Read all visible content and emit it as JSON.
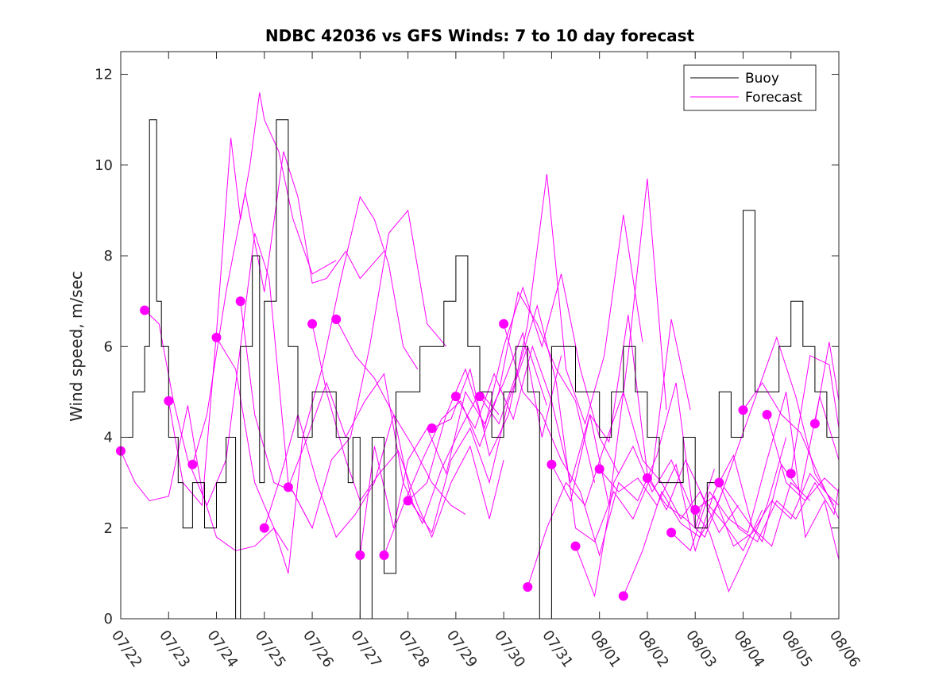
{
  "chart_data": {
    "type": "line",
    "title": "NDBC 42036 vs GFS Winds: 7 to 10 day forecast",
    "xlabel": "",
    "ylabel": "Wind speed, m/sec",
    "x_tick_labels": [
      "07/22",
      "07/23",
      "07/24",
      "07/25",
      "07/26",
      "07/27",
      "07/28",
      "07/29",
      "07/30",
      "07/31",
      "08/01",
      "08/02",
      "08/03",
      "08/04",
      "08/05",
      "08/06"
    ],
    "xlim_days": [
      0,
      15
    ],
    "ylim": [
      0,
      12.5
    ],
    "y_ticks": [
      0,
      2,
      4,
      6,
      8,
      10,
      12
    ],
    "grid": false,
    "legend_position": "top-right",
    "legend": [
      {
        "name": "Buoy",
        "color": "#000000"
      },
      {
        "name": "Forecast",
        "color": "#ff00ff"
      }
    ],
    "series": [
      {
        "name": "Buoy",
        "color": "#000000",
        "x_days": [
          0,
          0.25,
          0.5,
          0.6,
          0.75,
          0.85,
          1,
          1.2,
          1.3,
          1.5,
          1.75,
          2,
          2.2,
          2.4,
          2.5,
          2.75,
          2.9,
          3,
          3.25,
          3.5,
          3.7,
          4,
          4.25,
          4.5,
          4.75,
          4.85,
          5,
          5.25,
          5.5,
          5.75,
          6,
          6.25,
          6.5,
          6.75,
          7,
          7.25,
          7.5,
          7.75,
          8,
          8.25,
          8.5,
          8.75,
          9,
          9.25,
          9.5,
          9.75,
          10,
          10.25,
          10.5,
          10.75,
          11,
          11.25,
          11.5,
          11.75,
          12,
          12.25,
          12.5,
          12.75,
          13,
          13.25,
          13.5,
          13.75,
          14,
          14.25,
          14.5,
          14.75,
          15
        ],
        "values": [
          4,
          5,
          6,
          11,
          7,
          6,
          4,
          3,
          2,
          3,
          2,
          3,
          4,
          0,
          6,
          8,
          3,
          7,
          11,
          6,
          4,
          5,
          5,
          4,
          3,
          4,
          0,
          4,
          1,
          5,
          5,
          6,
          6,
          7,
          8,
          6,
          5,
          4,
          5,
          6,
          5,
          0,
          6,
          6,
          5,
          5,
          4,
          5,
          6,
          5,
          4,
          3,
          3,
          4,
          2,
          3,
          5,
          4,
          9,
          5,
          5,
          6,
          7,
          6,
          5,
          4,
          3
        ]
      }
    ],
    "forecast_lines": [
      {
        "x_days": [
          0.0,
          0.3,
          0.6,
          1.0,
          1.4,
          1.7,
          2.0,
          2.4,
          2.8,
          3.2,
          3.5
        ],
        "values": [
          3.7,
          3.0,
          2.6,
          2.7,
          4.7,
          2.8,
          1.8,
          1.5,
          1.6,
          2.0,
          1.5
        ]
      },
      {
        "x_days": [
          0.5,
          0.8,
          1.1,
          1.4,
          1.8,
          2.2,
          2.5,
          2.8,
          3.1,
          3.5,
          4.0
        ],
        "values": [
          6.8,
          6.5,
          4.8,
          3.5,
          2.5,
          3.5,
          6.0,
          8.5,
          7.5,
          3.0,
          2.0
        ]
      },
      {
        "x_days": [
          1.0,
          1.3,
          1.7,
          2.0,
          2.3,
          2.5,
          2.7,
          2.9,
          3.0,
          3.3,
          3.6,
          4.0,
          4.5
        ],
        "values": [
          4.8,
          3.0,
          2.5,
          6.3,
          10.6,
          8.8,
          10.0,
          11.6,
          11.0,
          10.3,
          8.8,
          7.6,
          7.9
        ]
      },
      {
        "x_days": [
          1.5,
          1.8,
          2.2,
          2.6,
          3.0,
          3.4,
          3.7,
          4.0,
          4.3,
          4.7,
          5.0,
          5.5
        ],
        "values": [
          3.4,
          4.5,
          7.2,
          9.4,
          7.2,
          10.3,
          9.3,
          7.4,
          7.5,
          8.1,
          7.5,
          8.1
        ]
      },
      {
        "x_days": [
          2.0,
          2.4,
          2.8,
          3.2,
          3.5,
          3.8,
          4.2,
          4.6,
          5.0,
          5.3,
          5.6,
          5.9,
          6.2
        ],
        "values": [
          6.2,
          5.5,
          3.0,
          2.0,
          1.0,
          4.0,
          5.5,
          7.5,
          9.3,
          8.8,
          7.8,
          6.0,
          5.5
        ]
      },
      {
        "x_days": [
          2.5,
          2.8,
          3.2,
          3.6,
          4.0,
          4.4,
          4.8,
          5.2,
          5.6,
          6.0,
          6.4,
          6.8
        ],
        "values": [
          7.0,
          4.5,
          3.0,
          2.8,
          2.0,
          3.5,
          4.0,
          6.0,
          8.5,
          9.0,
          6.5,
          6.0
        ]
      },
      {
        "x_days": [
          3.0,
          3.3,
          3.7,
          4.1,
          4.5,
          4.9,
          5.3,
          5.7,
          6.1,
          6.5,
          6.9,
          7.2
        ],
        "values": [
          2.0,
          3.0,
          4.5,
          3.0,
          1.8,
          2.3,
          3.0,
          4.5,
          3.8,
          3.0,
          2.5,
          2.3
        ]
      },
      {
        "x_days": [
          3.5,
          3.9,
          4.3,
          4.7,
          5.1,
          5.5,
          5.9,
          6.3,
          6.7,
          7.1,
          7.5,
          7.9
        ],
        "values": [
          2.9,
          4.0,
          5.2,
          4.0,
          4.8,
          5.4,
          3.0,
          2.1,
          3.3,
          4.2,
          5.0,
          4.5
        ]
      },
      {
        "x_days": [
          4.0,
          4.3,
          4.7,
          5.0,
          5.4,
          5.8,
          6.2,
          6.5,
          6.9,
          7.3,
          7.7,
          8.0
        ],
        "values": [
          6.5,
          5.0,
          3.5,
          2.6,
          3.2,
          3.7,
          2.5,
          1.8,
          3.0,
          3.8,
          2.2,
          3.5
        ]
      },
      {
        "x_days": [
          4.5,
          4.9,
          5.3,
          5.7,
          6.1,
          6.5,
          6.9,
          7.3,
          7.7,
          8.1,
          8.5,
          8.9
        ],
        "values": [
          6.6,
          5.8,
          5.3,
          4.5,
          2.5,
          1.9,
          3.5,
          4.2,
          3.0,
          4.8,
          6.0,
          4.7
        ]
      },
      {
        "x_days": [
          5.0,
          5.3,
          5.7,
          6.0,
          6.4,
          6.8,
          7.2,
          7.6,
          8.0,
          8.4,
          8.8,
          9.2
        ],
        "values": [
          1.4,
          3.8,
          2.0,
          3.5,
          4.2,
          3.2,
          5.0,
          4.3,
          5.2,
          6.3,
          4.0,
          5.8
        ]
      },
      {
        "x_days": [
          5.5,
          5.9,
          6.3,
          6.7,
          7.1,
          7.5,
          7.9,
          8.3,
          8.7,
          9.1,
          9.5,
          9.9
        ],
        "values": [
          1.4,
          2.5,
          3.5,
          4.4,
          4.8,
          3.8,
          5.0,
          7.2,
          6.5,
          5.5,
          4.8,
          3.0
        ]
      },
      {
        "x_days": [
          6.0,
          6.4,
          6.8,
          7.2,
          7.6,
          8.0,
          8.4,
          8.8,
          9.2,
          9.6,
          10.0,
          10.4
        ],
        "values": [
          2.6,
          3.0,
          4.5,
          5.5,
          4.2,
          6.0,
          7.3,
          6.0,
          7.6,
          5.5,
          4.0,
          3.2
        ]
      },
      {
        "x_days": [
          6.5,
          6.9,
          7.3,
          7.7,
          8.1,
          8.5,
          8.9,
          9.3,
          9.7,
          10.1,
          10.5,
          10.9
        ],
        "values": [
          4.2,
          4.4,
          5.5,
          3.6,
          4.5,
          6.5,
          9.8,
          5.5,
          4.3,
          5.8,
          8.9,
          6.1
        ]
      },
      {
        "x_days": [
          7.0,
          7.4,
          7.8,
          8.2,
          8.6,
          9.0,
          9.4,
          9.8,
          10.2,
          10.6,
          11.0,
          11.4
        ],
        "values": [
          4.9,
          4.2,
          5.4,
          4.4,
          6.0,
          4.8,
          3.0,
          4.5,
          2.5,
          5.8,
          9.7,
          4.6
        ]
      },
      {
        "x_days": [
          7.5,
          7.9,
          8.3,
          8.7,
          9.1,
          9.5,
          9.9,
          10.3,
          10.7,
          11.1,
          11.5,
          11.9
        ],
        "values": [
          4.9,
          4.3,
          5.5,
          6.9,
          5.2,
          2.0,
          1.7,
          2.8,
          2.2,
          3.2,
          6.6,
          4.6
        ]
      },
      {
        "x_days": [
          8.0,
          8.4,
          8.8,
          9.2,
          9.6,
          10.0,
          10.4,
          10.8,
          11.2,
          11.6,
          12.0,
          12.4
        ],
        "values": [
          6.5,
          5.0,
          4.5,
          3.5,
          2.8,
          1.4,
          3.0,
          2.6,
          3.6,
          5.2,
          2.0,
          3.3
        ]
      },
      {
        "x_days": [
          8.5,
          8.9,
          9.3,
          9.7,
          10.1,
          10.5,
          10.9,
          11.3,
          11.7,
          12.1,
          12.5,
          12.9
        ],
        "values": [
          0.7,
          2.0,
          3.0,
          2.5,
          3.8,
          5.0,
          3.5,
          3.0,
          2.2,
          2.8,
          1.9,
          2.5
        ]
      },
      {
        "x_days": [
          9.0,
          9.4,
          9.8,
          10.2,
          10.6,
          11.0,
          11.4,
          11.8,
          12.2,
          12.6,
          13.0,
          13.4
        ],
        "values": [
          3.4,
          2.6,
          4.5,
          3.9,
          6.7,
          3.2,
          2.4,
          3.5,
          2.6,
          2.1,
          1.5,
          2.4
        ]
      },
      {
        "x_days": [
          9.5,
          9.9,
          10.3,
          10.7,
          11.1,
          11.5,
          11.9,
          12.3,
          12.7,
          13.1,
          13.5,
          13.9
        ],
        "values": [
          1.6,
          0.5,
          3.0,
          3.8,
          2.8,
          3.5,
          2.5,
          1.9,
          0.6,
          1.5,
          2.5,
          4.0
        ]
      },
      {
        "x_days": [
          10.0,
          10.4,
          10.8,
          11.2,
          11.6,
          12.0,
          12.4,
          12.8,
          13.2,
          13.6,
          14.0,
          14.4
        ],
        "values": [
          3.3,
          2.8,
          3.1,
          2.5,
          3.4,
          1.5,
          2.8,
          3.6,
          2.0,
          1.6,
          3.0,
          2.6
        ]
      },
      {
        "x_days": [
          10.5,
          10.9,
          11.3,
          11.7,
          12.1,
          12.5,
          12.9,
          13.3,
          13.7,
          14.1,
          14.5,
          14.9
        ],
        "values": [
          0.5,
          1.5,
          2.8,
          2.1,
          1.8,
          2.6,
          3.8,
          5.0,
          6.2,
          4.9,
          3.2,
          2.5
        ]
      },
      {
        "x_days": [
          11.0,
          11.4,
          11.8,
          12.2,
          12.6,
          13.0,
          13.4,
          13.8,
          14.2,
          14.6,
          15.0
        ],
        "values": [
          3.1,
          2.5,
          2.2,
          1.8,
          2.9,
          2.3,
          1.7,
          3.4,
          2.8,
          4.9,
          3.5
        ]
      },
      {
        "x_days": [
          11.5,
          11.9,
          12.3,
          12.7,
          13.1,
          13.5,
          13.9,
          14.3,
          14.7,
          15.0
        ],
        "values": [
          1.9,
          1.5,
          2.8,
          2.2,
          1.9,
          3.5,
          5.0,
          1.8,
          2.6,
          1.3
        ]
      },
      {
        "x_days": [
          12.0,
          12.4,
          12.8,
          13.2,
          13.6,
          14.0,
          14.4,
          14.8,
          15.0
        ],
        "values": [
          2.4,
          2.7,
          1.6,
          1.9,
          2.6,
          2.2,
          3.2,
          2.7,
          2.5
        ]
      },
      {
        "x_days": [
          12.5,
          12.9,
          13.3,
          13.7,
          14.1,
          14.5,
          14.9,
          15.0
        ],
        "values": [
          3.0,
          2.0,
          1.7,
          2.6,
          2.2,
          3.0,
          2.3,
          2.9
        ]
      },
      {
        "x_days": [
          13.0,
          13.4,
          13.8,
          14.2,
          14.6,
          15.0
        ],
        "values": [
          4.6,
          5.2,
          4.5,
          4.1,
          3.1,
          2.2
        ]
      },
      {
        "x_days": [
          13.5,
          13.9,
          14.3,
          14.7,
          15.0
        ],
        "values": [
          4.5,
          3.0,
          2.6,
          3.1,
          2.8
        ]
      },
      {
        "x_days": [
          14.0,
          14.4,
          14.8,
          15.0
        ],
        "values": [
          3.2,
          5.8,
          5.6,
          4.2
        ]
      },
      {
        "x_days": [
          14.5,
          14.8,
          15.0
        ],
        "values": [
          4.3,
          6.1,
          4.8
        ]
      }
    ],
    "forecast_markers": {
      "x_days": [
        0.0,
        0.5,
        1.0,
        1.5,
        2.0,
        2.5,
        3.0,
        3.5,
        4.0,
        4.5,
        5.0,
        5.5,
        6.0,
        6.5,
        7.0,
        7.5,
        8.0,
        8.5,
        9.0,
        9.5,
        10.0,
        10.5,
        11.0,
        11.5,
        12.0,
        12.5,
        13.0,
        13.5,
        14.0,
        14.5
      ],
      "values": [
        3.7,
        6.8,
        4.8,
        3.4,
        6.2,
        7.0,
        2.0,
        2.9,
        6.5,
        6.6,
        1.4,
        1.4,
        2.6,
        4.2,
        4.9,
        4.9,
        6.5,
        0.7,
        3.4,
        1.6,
        3.3,
        0.5,
        3.1,
        1.9,
        2.4,
        3.0,
        4.6,
        4.5,
        3.2,
        4.3
      ]
    }
  }
}
